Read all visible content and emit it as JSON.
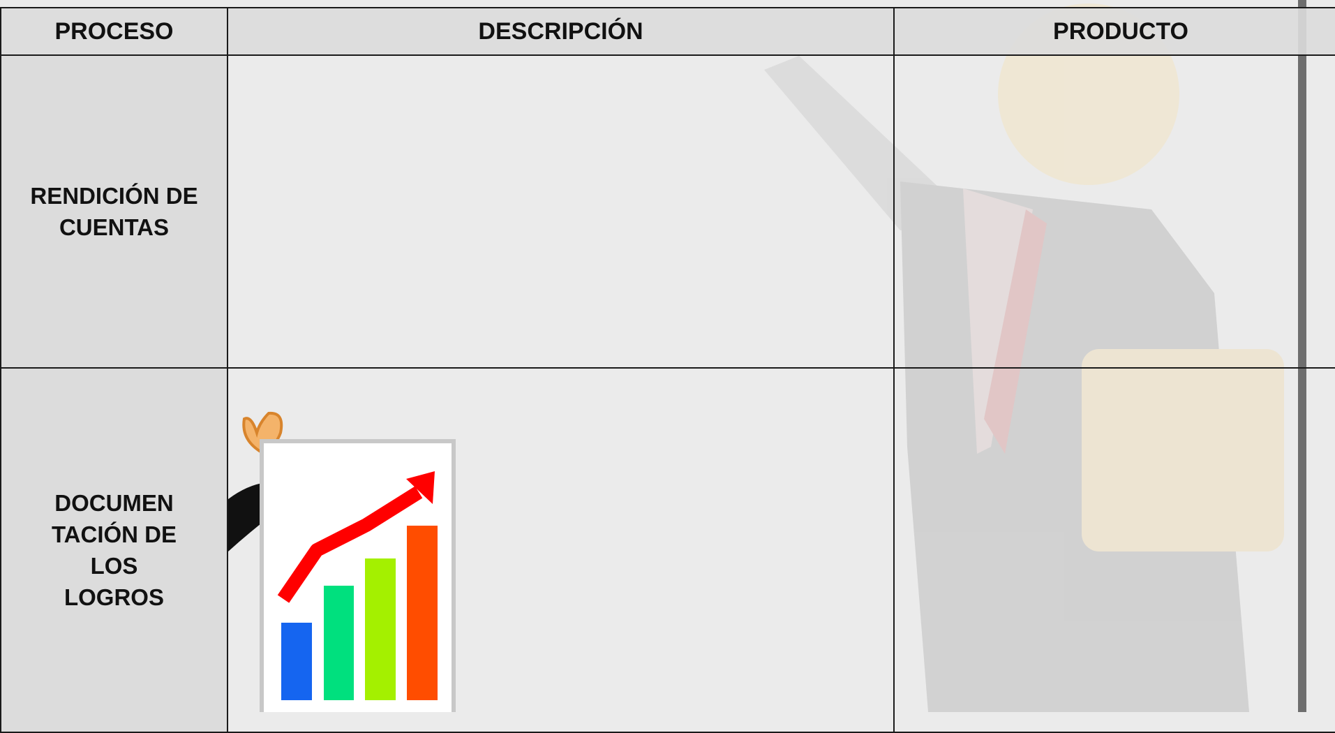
{
  "table": {
    "headers": [
      "PROCESO",
      "DESCRIPCIÓN",
      "PRODUCTO"
    ],
    "rows": [
      {
        "proceso": "RENDICIÓN DE CUENTAS"
      },
      {
        "proceso": "DOCUMEN TACIÓN DE LOS LOGROS"
      }
    ]
  }
}
